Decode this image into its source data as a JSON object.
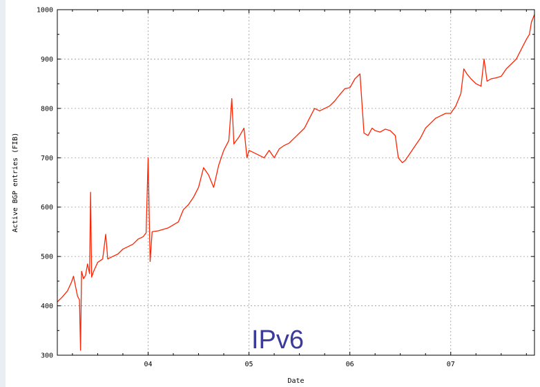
{
  "chart_data": {
    "type": "line",
    "xlabel": "Date",
    "ylabel": "Active BGP entries (FIB)",
    "annotation": "IPv6",
    "xlim": [
      2003.1,
      2007.83
    ],
    "ylim": [
      300,
      1000
    ],
    "x_ticks": [
      {
        "value": 2004,
        "label": "04"
      },
      {
        "value": 2005,
        "label": "05"
      },
      {
        "value": 2006,
        "label": "06"
      },
      {
        "value": 2007,
        "label": "07"
      }
    ],
    "y_ticks": [
      300,
      400,
      500,
      600,
      700,
      800,
      900,
      1000
    ],
    "grid": true,
    "line_color": "#ff2200",
    "series": [
      {
        "points": [
          [
            2003.1,
            408
          ],
          [
            2003.15,
            418
          ],
          [
            2003.2,
            430
          ],
          [
            2003.24,
            448
          ],
          [
            2003.26,
            460
          ],
          [
            2003.28,
            440
          ],
          [
            2003.3,
            420
          ],
          [
            2003.32,
            412
          ],
          [
            2003.33,
            310
          ],
          [
            2003.34,
            470
          ],
          [
            2003.36,
            455
          ],
          [
            2003.38,
            462
          ],
          [
            2003.4,
            485
          ],
          [
            2003.42,
            465
          ],
          [
            2003.43,
            630
          ],
          [
            2003.44,
            458
          ],
          [
            2003.46,
            470
          ],
          [
            2003.5,
            488
          ],
          [
            2003.55,
            495
          ],
          [
            2003.58,
            545
          ],
          [
            2003.6,
            495
          ],
          [
            2003.65,
            500
          ],
          [
            2003.7,
            505
          ],
          [
            2003.75,
            515
          ],
          [
            2003.8,
            520
          ],
          [
            2003.85,
            525
          ],
          [
            2003.9,
            535
          ],
          [
            2003.95,
            540
          ],
          [
            2003.98,
            548
          ],
          [
            2004.0,
            700
          ],
          [
            2004.02,
            490
          ],
          [
            2004.04,
            550
          ],
          [
            2004.1,
            552
          ],
          [
            2004.2,
            558
          ],
          [
            2004.3,
            570
          ],
          [
            2004.35,
            595
          ],
          [
            2004.4,
            605
          ],
          [
            2004.45,
            620
          ],
          [
            2004.5,
            640
          ],
          [
            2004.55,
            680
          ],
          [
            2004.6,
            665
          ],
          [
            2004.65,
            640
          ],
          [
            2004.7,
            685
          ],
          [
            2004.75,
            715
          ],
          [
            2004.8,
            735
          ],
          [
            2004.83,
            820
          ],
          [
            2004.85,
            728
          ],
          [
            2004.9,
            742
          ],
          [
            2004.95,
            760
          ],
          [
            2004.98,
            700
          ],
          [
            2005.0,
            715
          ],
          [
            2005.05,
            710
          ],
          [
            2005.1,
            705
          ],
          [
            2005.15,
            700
          ],
          [
            2005.2,
            715
          ],
          [
            2005.25,
            700
          ],
          [
            2005.3,
            718
          ],
          [
            2005.35,
            725
          ],
          [
            2005.4,
            730
          ],
          [
            2005.45,
            740
          ],
          [
            2005.5,
            750
          ],
          [
            2005.55,
            760
          ],
          [
            2005.6,
            780
          ],
          [
            2005.65,
            800
          ],
          [
            2005.7,
            795
          ],
          [
            2005.75,
            800
          ],
          [
            2005.8,
            805
          ],
          [
            2005.85,
            815
          ],
          [
            2005.9,
            828
          ],
          [
            2005.95,
            840
          ],
          [
            2006.0,
            842
          ],
          [
            2006.05,
            860
          ],
          [
            2006.1,
            870
          ],
          [
            2006.12,
            810
          ],
          [
            2006.14,
            750
          ],
          [
            2006.18,
            745
          ],
          [
            2006.22,
            760
          ],
          [
            2006.25,
            755
          ],
          [
            2006.3,
            752
          ],
          [
            2006.35,
            758
          ],
          [
            2006.4,
            755
          ],
          [
            2006.45,
            745
          ],
          [
            2006.48,
            700
          ],
          [
            2006.52,
            690
          ],
          [
            2006.55,
            695
          ],
          [
            2006.6,
            710
          ],
          [
            2006.65,
            725
          ],
          [
            2006.7,
            740
          ],
          [
            2006.75,
            760
          ],
          [
            2006.8,
            770
          ],
          [
            2006.85,
            780
          ],
          [
            2006.9,
            785
          ],
          [
            2006.95,
            790
          ],
          [
            2007.0,
            790
          ],
          [
            2007.05,
            805
          ],
          [
            2007.1,
            830
          ],
          [
            2007.13,
            880
          ],
          [
            2007.16,
            870
          ],
          [
            2007.2,
            860
          ],
          [
            2007.25,
            850
          ],
          [
            2007.3,
            845
          ],
          [
            2007.33,
            900
          ],
          [
            2007.36,
            855
          ],
          [
            2007.4,
            860
          ],
          [
            2007.45,
            862
          ],
          [
            2007.5,
            865
          ],
          [
            2007.55,
            880
          ],
          [
            2007.6,
            890
          ],
          [
            2007.65,
            900
          ],
          [
            2007.7,
            920
          ],
          [
            2007.75,
            940
          ],
          [
            2007.78,
            950
          ],
          [
            2007.8,
            975
          ],
          [
            2007.82,
            985
          ],
          [
            2007.83,
            990
          ]
        ]
      }
    ]
  }
}
